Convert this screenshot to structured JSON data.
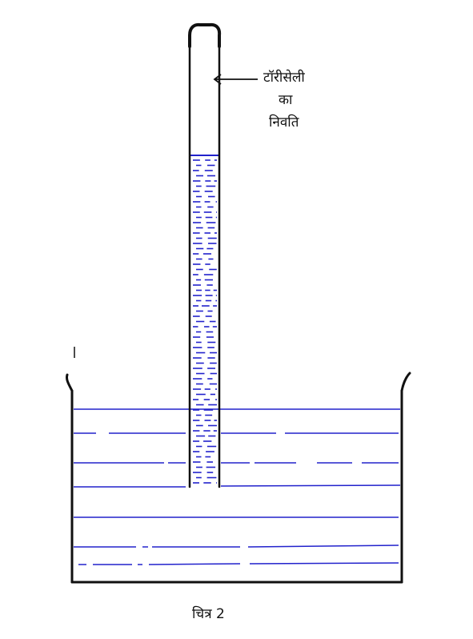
{
  "annotation": {
    "line1": "टॉरीसेली",
    "line2": "का",
    "line3": "निवति"
  },
  "caption": "चित्र 2",
  "colors": {
    "outline": "#111111",
    "mercury": "#2222cc"
  }
}
